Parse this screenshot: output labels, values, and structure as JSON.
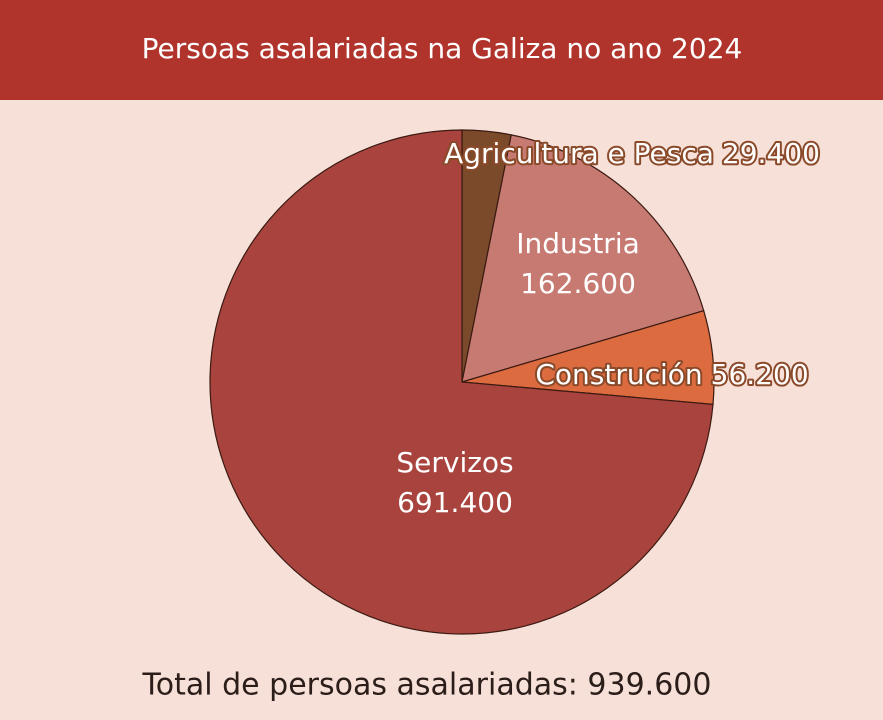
{
  "chart_data": {
    "type": "pie",
    "title": "Persoas asalariadas na Galiza no ano 2024",
    "categories": [
      "Agricultura e Pesca",
      "Industria",
      "Construción",
      "Servizos"
    ],
    "values": [
      29400,
      162600,
      56200,
      691400
    ],
    "value_labels": [
      "29.400",
      "162.600",
      "56.200",
      "691.400"
    ],
    "colors": [
      "#7b4a2b",
      "#c77a71",
      "#dd6b40",
      "#a8443d"
    ],
    "footer": "Total de persoas asalariadas: 939.600"
  }
}
